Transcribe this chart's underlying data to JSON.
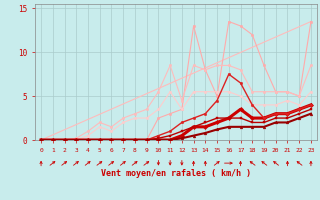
{
  "title": "",
  "xlabel": "Vent moyen/en rafales ( km/h )",
  "ylabel": "",
  "background_color": "#c8ecec",
  "grid_color": "#aacccc",
  "text_color": "#cc0000",
  "xlim": [
    -0.5,
    23.5
  ],
  "ylim": [
    0,
    15.5
  ],
  "xticks": [
    0,
    1,
    2,
    3,
    4,
    5,
    6,
    7,
    8,
    9,
    10,
    11,
    12,
    13,
    14,
    15,
    16,
    17,
    18,
    19,
    20,
    21,
    22,
    23
  ],
  "yticks": [
    0,
    5,
    10,
    15
  ],
  "series": [
    {
      "label": "linear_ref",
      "x": [
        0,
        23
      ],
      "y": [
        0,
        13.5
      ],
      "color": "#ffbbbb",
      "lw": 0.8,
      "marker": "none",
      "ms": 0
    },
    {
      "label": "upper_light",
      "x": [
        0,
        1,
        2,
        3,
        4,
        5,
        6,
        7,
        8,
        9,
        10,
        11,
        12,
        13,
        14,
        15,
        16,
        17,
        18,
        19,
        20,
        21,
        22,
        23
      ],
      "y": [
        0,
        0,
        0,
        0,
        0,
        0,
        0,
        0,
        0,
        0,
        2.5,
        3.0,
        3.5,
        13.0,
        8.0,
        5.0,
        13.5,
        13.0,
        12.0,
        8.5,
        5.5,
        5.5,
        5.0,
        13.5
      ],
      "color": "#ffaaaa",
      "lw": 0.8,
      "marker": "o",
      "ms": 1.8
    },
    {
      "label": "mid_light_zigzag",
      "x": [
        0,
        1,
        2,
        3,
        4,
        5,
        6,
        7,
        8,
        9,
        10,
        11,
        12,
        13,
        14,
        15,
        16,
        17,
        18,
        19,
        20,
        21,
        22,
        23
      ],
      "y": [
        0,
        0,
        0,
        0.2,
        1.0,
        2.0,
        1.5,
        2.5,
        3.0,
        3.5,
        5.5,
        8.5,
        4.5,
        8.5,
        8.0,
        8.5,
        8.5,
        8.0,
        5.5,
        5.5,
        5.5,
        5.5,
        5.0,
        8.5
      ],
      "color": "#ffbbbb",
      "lw": 0.8,
      "marker": "o",
      "ms": 1.8
    },
    {
      "label": "mid_pink_flat",
      "x": [
        0,
        1,
        2,
        3,
        4,
        5,
        6,
        7,
        8,
        9,
        10,
        11,
        12,
        13,
        14,
        15,
        16,
        17,
        18,
        19,
        20,
        21,
        22,
        23
      ],
      "y": [
        0,
        0,
        0,
        0,
        0.5,
        1.5,
        1.0,
        2.0,
        2.5,
        2.5,
        3.5,
        5.5,
        3.5,
        5.5,
        5.5,
        5.5,
        5.5,
        5.0,
        4.0,
        4.0,
        4.0,
        4.5,
        4.0,
        5.5
      ],
      "color": "#ffcccc",
      "lw": 0.8,
      "marker": "o",
      "ms": 1.8
    },
    {
      "label": "thick_red_main",
      "x": [
        0,
        1,
        2,
        3,
        4,
        5,
        6,
        7,
        8,
        9,
        10,
        11,
        12,
        13,
        14,
        15,
        16,
        17,
        18,
        19,
        20,
        21,
        22,
        23
      ],
      "y": [
        0,
        0,
        0,
        0,
        0,
        0,
        0,
        0,
        0,
        0,
        0,
        0,
        0.5,
        1.5,
        1.5,
        2.0,
        2.5,
        3.5,
        2.5,
        2.5,
        3.0,
        3.0,
        3.5,
        4.0
      ],
      "color": "#cc0000",
      "lw": 2.2,
      "marker": "D",
      "ms": 2.2
    },
    {
      "label": "red_upper_spike",
      "x": [
        0,
        1,
        2,
        3,
        4,
        5,
        6,
        7,
        8,
        9,
        10,
        11,
        12,
        13,
        14,
        15,
        16,
        17,
        18,
        19,
        20,
        21,
        22,
        23
      ],
      "y": [
        0,
        0,
        0,
        0,
        0,
        0,
        0,
        0,
        0,
        0,
        0.5,
        1.0,
        2.0,
        2.5,
        3.0,
        4.5,
        7.5,
        6.5,
        4.0,
        2.5,
        3.0,
        3.0,
        3.5,
        4.0
      ],
      "color": "#dd2222",
      "lw": 1.0,
      "marker": "o",
      "ms": 1.8
    },
    {
      "label": "red_low",
      "x": [
        0,
        1,
        2,
        3,
        4,
        5,
        6,
        7,
        8,
        9,
        10,
        11,
        12,
        13,
        14,
        15,
        16,
        17,
        18,
        19,
        20,
        21,
        22,
        23
      ],
      "y": [
        0,
        0,
        0,
        0,
        0,
        0,
        0,
        0,
        0,
        0,
        0.2,
        0.5,
        1.0,
        1.5,
        2.0,
        2.5,
        2.5,
        2.5,
        2.0,
        2.0,
        2.5,
        2.5,
        3.0,
        3.5
      ],
      "color": "#bb0000",
      "lw": 1.0,
      "marker": "s",
      "ms": 1.8
    },
    {
      "label": "darkred_bottom",
      "x": [
        0,
        1,
        2,
        3,
        4,
        5,
        6,
        7,
        8,
        9,
        10,
        11,
        12,
        13,
        14,
        15,
        16,
        17,
        18,
        19,
        20,
        21,
        22,
        23
      ],
      "y": [
        0,
        0,
        0,
        0,
        0,
        0,
        0,
        0,
        0,
        0,
        0,
        0,
        0.2,
        0.5,
        0.8,
        1.2,
        1.5,
        1.5,
        1.5,
        1.5,
        2.0,
        2.0,
        2.5,
        3.0
      ],
      "color": "#990000",
      "lw": 1.5,
      "marker": "^",
      "ms": 2.0
    }
  ],
  "wind_directions": [
    0,
    45,
    45,
    45,
    45,
    45,
    45,
    45,
    45,
    45,
    180,
    180,
    180,
    0,
    0,
    45,
    90,
    0,
    315,
    315,
    315,
    0,
    315,
    0
  ],
  "arrow_color": "#cc0000",
  "spine_color": "#888888"
}
